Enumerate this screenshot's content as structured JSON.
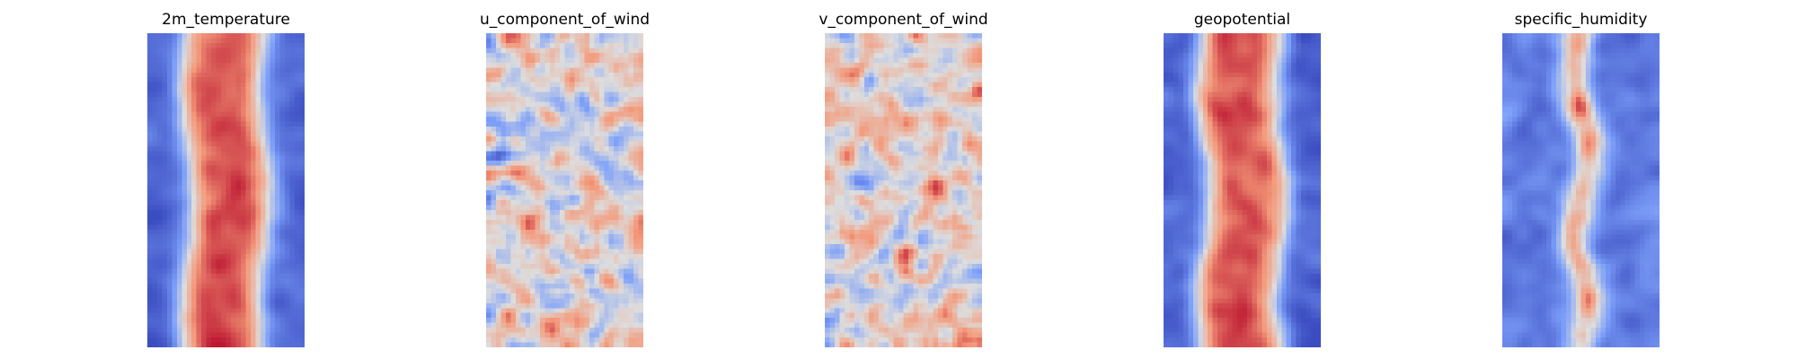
{
  "chart_data": [
    {
      "type": "heatmap",
      "title": "2m_temperature",
      "colormap": "coolwarm",
      "axis": "off",
      "pattern": "warm-center-band",
      "panel": 0,
      "grid": [
        32,
        64
      ]
    },
    {
      "type": "heatmap",
      "title": "u_component_of_wind",
      "colormap": "coolwarm",
      "axis": "off",
      "pattern": "noisy",
      "panel": 1,
      "grid": [
        32,
        64
      ]
    },
    {
      "type": "heatmap",
      "title": "v_component_of_wind",
      "colormap": "coolwarm",
      "axis": "off",
      "pattern": "noisy",
      "panel": 2,
      "grid": [
        32,
        64
      ]
    },
    {
      "type": "heatmap",
      "title": "geopotential",
      "colormap": "coolwarm",
      "axis": "off",
      "pattern": "warm-center-band",
      "panel": 3,
      "grid": [
        32,
        64
      ]
    },
    {
      "type": "heatmap",
      "title": "specific_humidity",
      "colormap": "coolwarm",
      "axis": "off",
      "pattern": "cool-with-thin-warm-core",
      "panel": 4,
      "grid": [
        32,
        64
      ]
    }
  ]
}
